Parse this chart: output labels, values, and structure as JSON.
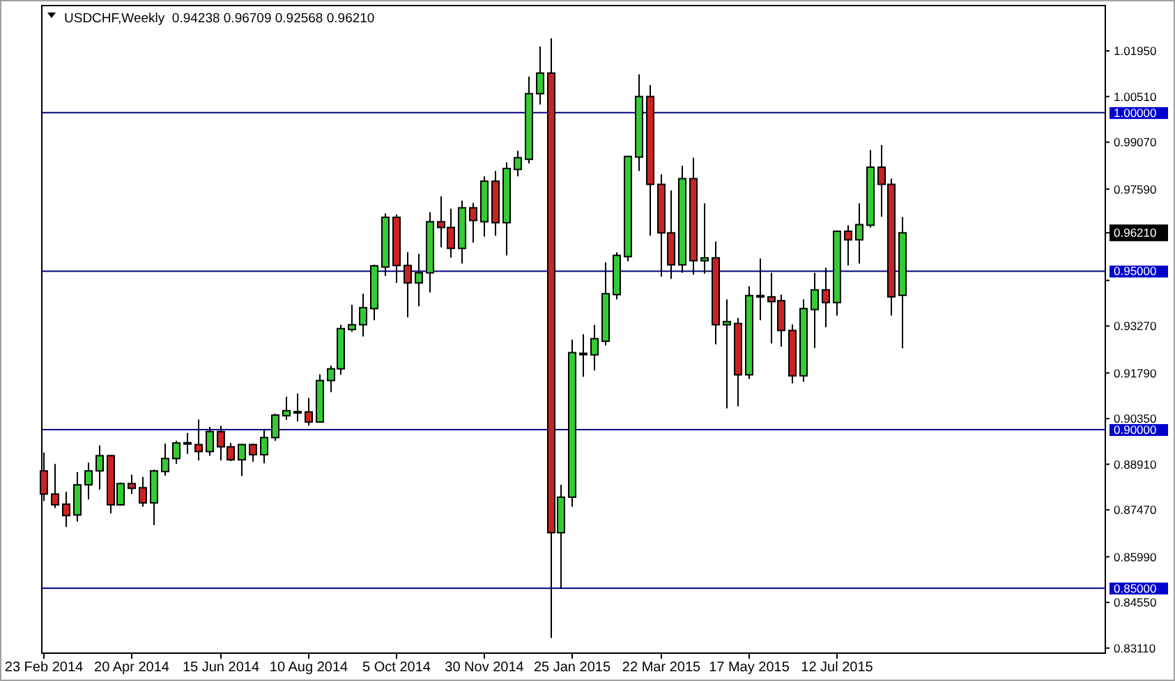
{
  "chart_data": {
    "type": "candlestick",
    "title": "USDCHF,Weekly  0.94238 0.96709 0.92568 0.96210",
    "x": [
      "2014-02-23",
      "2014-03-02",
      "2014-03-09",
      "2014-03-16",
      "2014-03-23",
      "2014-03-30",
      "2014-04-06",
      "2014-04-13",
      "2014-04-20",
      "2014-04-27",
      "2014-05-04",
      "2014-05-11",
      "2014-05-18",
      "2014-05-25",
      "2014-06-01",
      "2014-06-08",
      "2014-06-15",
      "2014-06-22",
      "2014-06-29",
      "2014-07-06",
      "2014-07-13",
      "2014-07-20",
      "2014-07-27",
      "2014-08-03",
      "2014-08-10",
      "2014-08-17",
      "2014-08-24",
      "2014-08-31",
      "2014-09-07",
      "2014-09-14",
      "2014-09-21",
      "2014-09-28",
      "2014-10-05",
      "2014-10-12",
      "2014-10-19",
      "2014-10-26",
      "2014-11-02",
      "2014-11-09",
      "2014-11-16",
      "2014-11-23",
      "2014-11-30",
      "2014-12-07",
      "2014-12-14",
      "2014-12-21",
      "2014-12-28",
      "2015-01-04",
      "2015-01-11",
      "2015-01-18",
      "2015-01-25",
      "2015-02-01",
      "2015-02-08",
      "2015-02-15",
      "2015-02-22",
      "2015-03-01",
      "2015-03-08",
      "2015-03-15",
      "2015-03-22",
      "2015-03-29",
      "2015-04-05",
      "2015-04-12",
      "2015-04-19",
      "2015-04-26",
      "2015-05-03",
      "2015-05-10",
      "2015-05-17",
      "2015-05-24",
      "2015-05-31",
      "2015-06-07",
      "2015-06-14",
      "2015-06-21",
      "2015-06-28",
      "2015-07-05",
      "2015-07-12",
      "2015-07-19",
      "2015-07-26",
      "2015-08-02",
      "2015-08-09",
      "2015-08-16",
      "2015-08-23"
    ],
    "ohlc": [
      [
        0.887,
        0.8928,
        0.8775,
        0.8797
      ],
      [
        0.8797,
        0.8892,
        0.8753,
        0.8763
      ],
      [
        0.8765,
        0.8804,
        0.8693,
        0.8729
      ],
      [
        0.8731,
        0.8866,
        0.871,
        0.8826
      ],
      [
        0.8826,
        0.8896,
        0.878,
        0.887
      ],
      [
        0.887,
        0.895,
        0.8811,
        0.8918
      ],
      [
        0.8918,
        0.892,
        0.8736,
        0.8763
      ],
      [
        0.8763,
        0.8833,
        0.876,
        0.883
      ],
      [
        0.883,
        0.8858,
        0.8797,
        0.8815
      ],
      [
        0.8817,
        0.8851,
        0.8757,
        0.8769
      ],
      [
        0.8769,
        0.8874,
        0.8699,
        0.887
      ],
      [
        0.8868,
        0.8956,
        0.8855,
        0.8909
      ],
      [
        0.8909,
        0.8965,
        0.8892,
        0.8958
      ],
      [
        0.8958,
        0.899,
        0.8924,
        0.8959
      ],
      [
        0.8953,
        0.9032,
        0.8903,
        0.8931
      ],
      [
        0.8931,
        0.9009,
        0.8918,
        0.8994
      ],
      [
        0.8994,
        0.9012,
        0.8903,
        0.8946
      ],
      [
        0.8946,
        0.8958,
        0.8901,
        0.8905
      ],
      [
        0.8905,
        0.8955,
        0.8854,
        0.8953
      ],
      [
        0.8953,
        0.8956,
        0.8899,
        0.8921
      ],
      [
        0.8921,
        0.9002,
        0.8894,
        0.8975
      ],
      [
        0.8975,
        0.905,
        0.8965,
        0.9046
      ],
      [
        0.9044,
        0.9104,
        0.9031,
        0.906
      ],
      [
        0.9057,
        0.9114,
        0.9026,
        0.9057
      ],
      [
        0.9056,
        0.91,
        0.9013,
        0.9024
      ],
      [
        0.9024,
        0.9175,
        0.9022,
        0.9155
      ],
      [
        0.9155,
        0.9202,
        0.9118,
        0.9192
      ],
      [
        0.9192,
        0.9331,
        0.9173,
        0.9319
      ],
      [
        0.9316,
        0.9394,
        0.9309,
        0.9331
      ],
      [
        0.9331,
        0.9429,
        0.9294,
        0.9385
      ],
      [
        0.9382,
        0.9521,
        0.9345,
        0.9517
      ],
      [
        0.9513,
        0.9682,
        0.9485,
        0.967
      ],
      [
        0.967,
        0.9679,
        0.9463,
        0.9518
      ],
      [
        0.9518,
        0.956,
        0.9355,
        0.9463
      ],
      [
        0.9463,
        0.9555,
        0.9389,
        0.9495
      ],
      [
        0.9495,
        0.9686,
        0.9433,
        0.9656
      ],
      [
        0.9656,
        0.9736,
        0.9575,
        0.9638
      ],
      [
        0.9638,
        0.9697,
        0.9543,
        0.9572
      ],
      [
        0.9572,
        0.9723,
        0.9524,
        0.97
      ],
      [
        0.97,
        0.9715,
        0.959,
        0.966
      ],
      [
        0.9656,
        0.9799,
        0.9609,
        0.9784
      ],
      [
        0.9784,
        0.9816,
        0.9612,
        0.9653
      ],
      [
        0.9653,
        0.9843,
        0.955,
        0.9824
      ],
      [
        0.9821,
        0.988,
        0.9799,
        0.9858
      ],
      [
        0.9853,
        1.0114,
        0.984,
        1.006
      ],
      [
        1.006,
        1.0209,
        1.0026,
        1.0125
      ],
      [
        1.0125,
        1.0235,
        0.8343,
        0.8675
      ],
      [
        0.8675,
        0.8826,
        0.8499,
        0.8787
      ],
      [
        0.8787,
        0.9284,
        0.8757,
        0.9243
      ],
      [
        0.9241,
        0.9301,
        0.9167,
        0.9241
      ],
      [
        0.9236,
        0.9331,
        0.9187,
        0.9287
      ],
      [
        0.9279,
        0.9528,
        0.9266,
        0.9429
      ],
      [
        0.9426,
        0.956,
        0.9411,
        0.955
      ],
      [
        0.9546,
        0.9863,
        0.9531,
        0.9862
      ],
      [
        0.986,
        1.0121,
        0.9816,
        1.0051
      ],
      [
        1.0051,
        1.0087,
        0.9612,
        0.9774
      ],
      [
        0.9774,
        0.9806,
        0.9483,
        0.9621
      ],
      [
        0.9621,
        0.9755,
        0.9476,
        0.952
      ],
      [
        0.952,
        0.9833,
        0.9495,
        0.9792
      ],
      [
        0.9792,
        0.9858,
        0.9489,
        0.9533
      ],
      [
        0.9533,
        0.9714,
        0.9492,
        0.9542
      ],
      [
        0.9542,
        0.9594,
        0.9269,
        0.9331
      ],
      [
        0.9331,
        0.9411,
        0.9067,
        0.9341
      ],
      [
        0.9335,
        0.9353,
        0.9074,
        0.9173
      ],
      [
        0.9173,
        0.9452,
        0.916,
        0.9423
      ],
      [
        0.9423,
        0.954,
        0.9345,
        0.9423
      ],
      [
        0.9419,
        0.9495,
        0.9272,
        0.9404
      ],
      [
        0.9407,
        0.9426,
        0.9262,
        0.9313
      ],
      [
        0.9313,
        0.9332,
        0.9146,
        0.917
      ],
      [
        0.917,
        0.9411,
        0.9151,
        0.9382
      ],
      [
        0.9379,
        0.9495,
        0.9258,
        0.9441
      ],
      [
        0.9441,
        0.9511,
        0.9323,
        0.9401
      ],
      [
        0.9401,
        0.9628,
        0.936,
        0.9626
      ],
      [
        0.9626,
        0.9645,
        0.9518,
        0.9599
      ],
      [
        0.9599,
        0.9714,
        0.9524,
        0.9647
      ],
      [
        0.9645,
        0.9882,
        0.9638,
        0.9828
      ],
      [
        0.9828,
        0.9898,
        0.9672,
        0.9774
      ],
      [
        0.9774,
        0.9792,
        0.936,
        0.9419
      ],
      [
        0.94238,
        0.96709,
        0.92568,
        0.9621
      ]
    ],
    "colors": [
      "#cc2222",
      "#cc2222",
      "#cc2222",
      "#33cc33",
      "#33cc33",
      "#33cc33",
      "#cc2222",
      "#33cc33",
      "#cc2222",
      "#cc2222",
      "#33cc33",
      "#33cc33",
      "#33cc33",
      "#33cc33",
      "#cc2222",
      "#33cc33",
      "#cc2222",
      "#cc2222",
      "#33cc33",
      "#cc2222",
      "#33cc33",
      "#33cc33",
      "#33cc33",
      "#33cc33",
      "#cc2222",
      "#33cc33",
      "#33cc33",
      "#33cc33",
      "#33cc33",
      "#33cc33",
      "#33cc33",
      "#33cc33",
      "#cc2222",
      "#cc2222",
      "#33cc33",
      "#33cc33",
      "#cc2222",
      "#cc2222",
      "#33cc33",
      "#cc2222",
      "#33cc33",
      "#cc2222",
      "#33cc33",
      "#33cc33",
      "#33cc33",
      "#33cc33",
      "#cc2222",
      "#33cc33",
      "#33cc33",
      "#33cc33",
      "#33cc33",
      "#33cc33",
      "#33cc33",
      "#33cc33",
      "#33cc33",
      "#cc2222",
      "#cc2222",
      "#cc2222",
      "#33cc33",
      "#cc2222",
      "#33cc33",
      "#cc2222",
      "#33cc33",
      "#cc2222",
      "#33cc33",
      "#33cc33",
      "#cc2222",
      "#cc2222",
      "#cc2222",
      "#33cc33",
      "#33cc33",
      "#cc2222",
      "#33cc33",
      "#cc2222",
      "#33cc33",
      "#33cc33",
      "#cc2222",
      "#cc2222",
      "#33cc33"
    ],
    "xlim": [
      "2014-02-22",
      "2015-12-30"
    ],
    "xticks": [
      {
        "value": "2014-02-23",
        "label": "23 Feb 2014"
      },
      {
        "value": "2014-04-20",
        "label": "20 Apr 2014"
      },
      {
        "value": "2014-06-15",
        "label": "15 Jun 2014"
      },
      {
        "value": "2014-08-10",
        "label": "10 Aug 2014"
      },
      {
        "value": "2014-10-05",
        "label": "5 Oct 2014"
      },
      {
        "value": "2014-11-30",
        "label": "30 Nov 2014"
      },
      {
        "value": "2015-01-25",
        "label": "25 Jan 2015"
      },
      {
        "value": "2015-03-22",
        "label": "22 Mar 2015"
      },
      {
        "value": "2015-05-17",
        "label": "17 May 2015"
      },
      {
        "value": "2015-07-12",
        "label": "12 Jul 2015"
      }
    ],
    "ylim": [
      0.8295,
      1.0338
    ],
    "yticks": [
      {
        "value": 1.0195,
        "label": "1.01950"
      },
      {
        "value": 1.0051,
        "label": "1.00510"
      },
      {
        "value": 0.9907,
        "label": "0.99070"
      },
      {
        "value": 0.9759,
        "label": "0.97590"
      },
      {
        "value": 0.9621,
        "label": "0.96210"
      },
      {
        "value": 0.9471,
        "label": null
      },
      {
        "value": 0.9327,
        "label": "0.93270"
      },
      {
        "value": 0.9179,
        "label": "0.91790"
      },
      {
        "value": 0.9035,
        "label": "0.90350"
      },
      {
        "value": 0.8891,
        "label": "0.88910"
      },
      {
        "value": 0.8747,
        "label": "0.87470"
      },
      {
        "value": 0.8599,
        "label": "0.85990"
      },
      {
        "value": 0.8455,
        "label": "0.84550"
      },
      {
        "value": 0.8311,
        "label": "0.83110"
      }
    ],
    "ref_lines": [
      {
        "axis": "y",
        "value": 1.0,
        "label": "1.00000",
        "color": "#000080"
      },
      {
        "axis": "y",
        "value": 0.95,
        "label": "0.95000",
        "color": "#000080"
      },
      {
        "axis": "y",
        "value": 0.9,
        "label": "0.90000",
        "color": "#000080"
      },
      {
        "axis": "y",
        "value": 0.85,
        "label": "0.85000",
        "color": "#000080"
      }
    ]
  }
}
